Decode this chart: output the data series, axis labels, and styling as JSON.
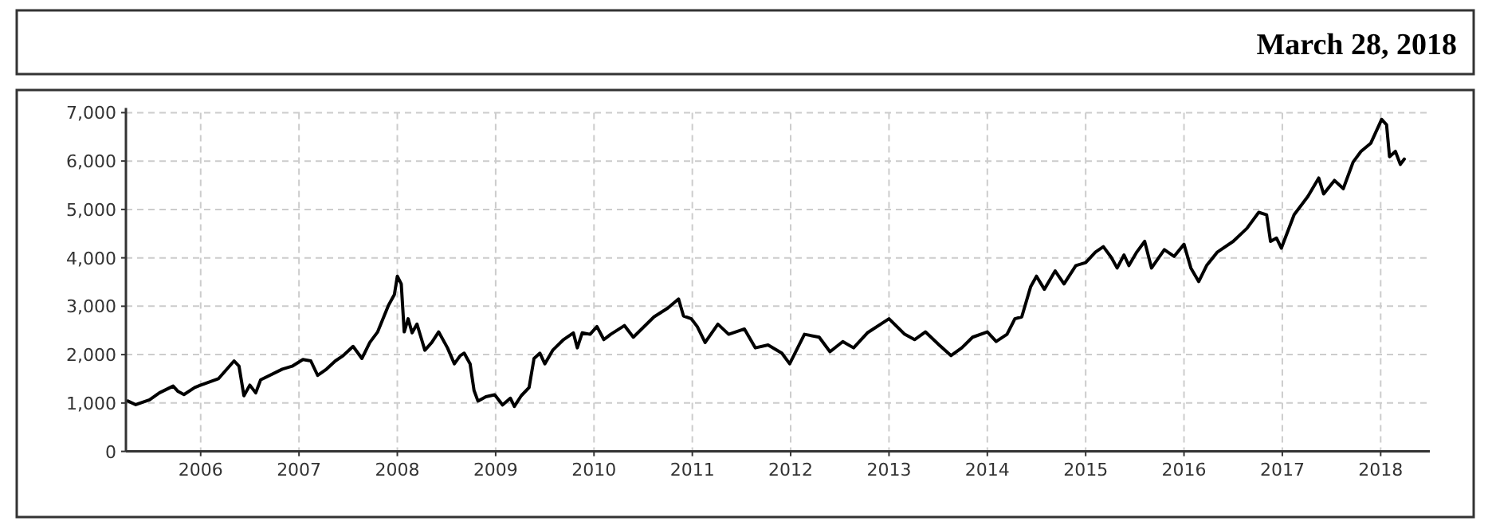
{
  "chart_data": {
    "type": "line",
    "title": "March 28, 2018",
    "xlim": [
      2005.24,
      2018.5
    ],
    "xticks": [
      2006,
      2007,
      2008,
      2009,
      2010,
      2011,
      2012,
      2013,
      2014,
      2015,
      2016,
      2017,
      2018
    ],
    "ylim": [
      0,
      7000
    ],
    "yticks": [
      0,
      {
        "value": 1000,
        "label": "1,000"
      },
      {
        "value": 2000,
        "label": "2,000"
      },
      {
        "value": 3000,
        "label": "3,000"
      },
      {
        "value": 4000,
        "label": "4,000"
      },
      {
        "value": 5000,
        "label": "5,000"
      },
      {
        "value": 6000,
        "label": "6,000"
      },
      {
        "value": 7000,
        "label": "7,000"
      }
    ],
    "grid": true,
    "marker": "none",
    "line_style": "solid",
    "series": [
      {
        "color": "#000000",
        "x": [
          2005.26,
          2005.34,
          2005.48,
          2005.58,
          2005.72,
          2005.77,
          2005.83,
          2005.94,
          2006.0,
          2006.18,
          2006.34,
          2006.39,
          2006.44,
          2006.5,
          2006.56,
          2006.61,
          2006.83,
          2006.93,
          2007.04,
          2007.12,
          2007.19,
          2007.28,
          2007.37,
          2007.45,
          2007.55,
          2007.64,
          2007.72,
          2007.8,
          2007.91,
          2007.97,
          2008.0,
          2008.04,
          2008.07,
          2008.11,
          2008.15,
          2008.2,
          2008.24,
          2008.28,
          2008.35,
          2008.42,
          2008.51,
          2008.58,
          2008.64,
          2008.68,
          2008.74,
          2008.78,
          2008.82,
          2008.9,
          2008.99,
          2009.07,
          2009.15,
          2009.19,
          2009.26,
          2009.34,
          2009.39,
          2009.45,
          2009.5,
          2009.58,
          2009.69,
          2009.79,
          2009.83,
          2009.88,
          2009.96,
          2010.03,
          2010.1,
          2010.17,
          2010.31,
          2010.4,
          2010.61,
          2010.75,
          2010.86,
          2010.91,
          2010.99,
          2011.05,
          2011.13,
          2011.26,
          2011.37,
          2011.53,
          2011.64,
          2011.77,
          2011.91,
          2011.99,
          2012.14,
          2012.29,
          2012.4,
          2012.53,
          2012.64,
          2012.78,
          2013.0,
          2013.16,
          2013.26,
          2013.37,
          2013.51,
          2013.63,
          2013.74,
          2013.85,
          2014.0,
          2014.09,
          2014.2,
          2014.28,
          2014.35,
          2014.44,
          2014.5,
          2014.58,
          2014.69,
          2014.78,
          2014.9,
          2015.0,
          2015.1,
          2015.18,
          2015.26,
          2015.32,
          2015.39,
          2015.44,
          2015.52,
          2015.6,
          2015.67,
          2015.8,
          2015.9,
          2016.0,
          2016.07,
          2016.15,
          2016.23,
          2016.34,
          2016.5,
          2016.64,
          2016.76,
          2016.84,
          2016.88,
          2016.94,
          2016.99,
          2017.12,
          2017.26,
          2017.37,
          2017.42,
          2017.53,
          2017.62,
          2017.72,
          2017.8,
          2017.9,
          2018.01,
          2018.06,
          2018.09,
          2018.15,
          2018.2,
          2018.24
        ],
        "values": [
          1040,
          965,
          1065,
          1210,
          1350,
          1240,
          1175,
          1320,
          1370,
          1500,
          1870,
          1760,
          1150,
          1370,
          1210,
          1480,
          1700,
          1760,
          1900,
          1870,
          1570,
          1700,
          1870,
          1980,
          2170,
          1920,
          2250,
          2470,
          3020,
          3240,
          3620,
          3460,
          2470,
          2740,
          2450,
          2630,
          2360,
          2090,
          2250,
          2470,
          2140,
          1810,
          1980,
          2030,
          1810,
          1260,
          1040,
          1130,
          1170,
          960,
          1100,
          930,
          1150,
          1320,
          1920,
          2030,
          1810,
          2090,
          2310,
          2450,
          2140,
          2450,
          2420,
          2580,
          2310,
          2420,
          2600,
          2360,
          2780,
          2960,
          3150,
          2800,
          2740,
          2580,
          2250,
          2630,
          2420,
          2530,
          2140,
          2200,
          2030,
          1810,
          2420,
          2360,
          2060,
          2270,
          2140,
          2450,
          2740,
          2420,
          2310,
          2470,
          2200,
          1980,
          2140,
          2360,
          2470,
          2270,
          2420,
          2740,
          2780,
          3400,
          3620,
          3350,
          3730,
          3460,
          3840,
          3900,
          4120,
          4230,
          4010,
          3790,
          4060,
          3840,
          4120,
          4340,
          3790,
          4170,
          4030,
          4280,
          3790,
          3510,
          3840,
          4120,
          4340,
          4610,
          4940,
          4890,
          4340,
          4410,
          4200,
          4890,
          5270,
          5650,
          5320,
          5600,
          5430,
          5980,
          6200,
          6370,
          6860,
          6750,
          6090,
          6200,
          5930,
          6040
        ]
      }
    ]
  }
}
